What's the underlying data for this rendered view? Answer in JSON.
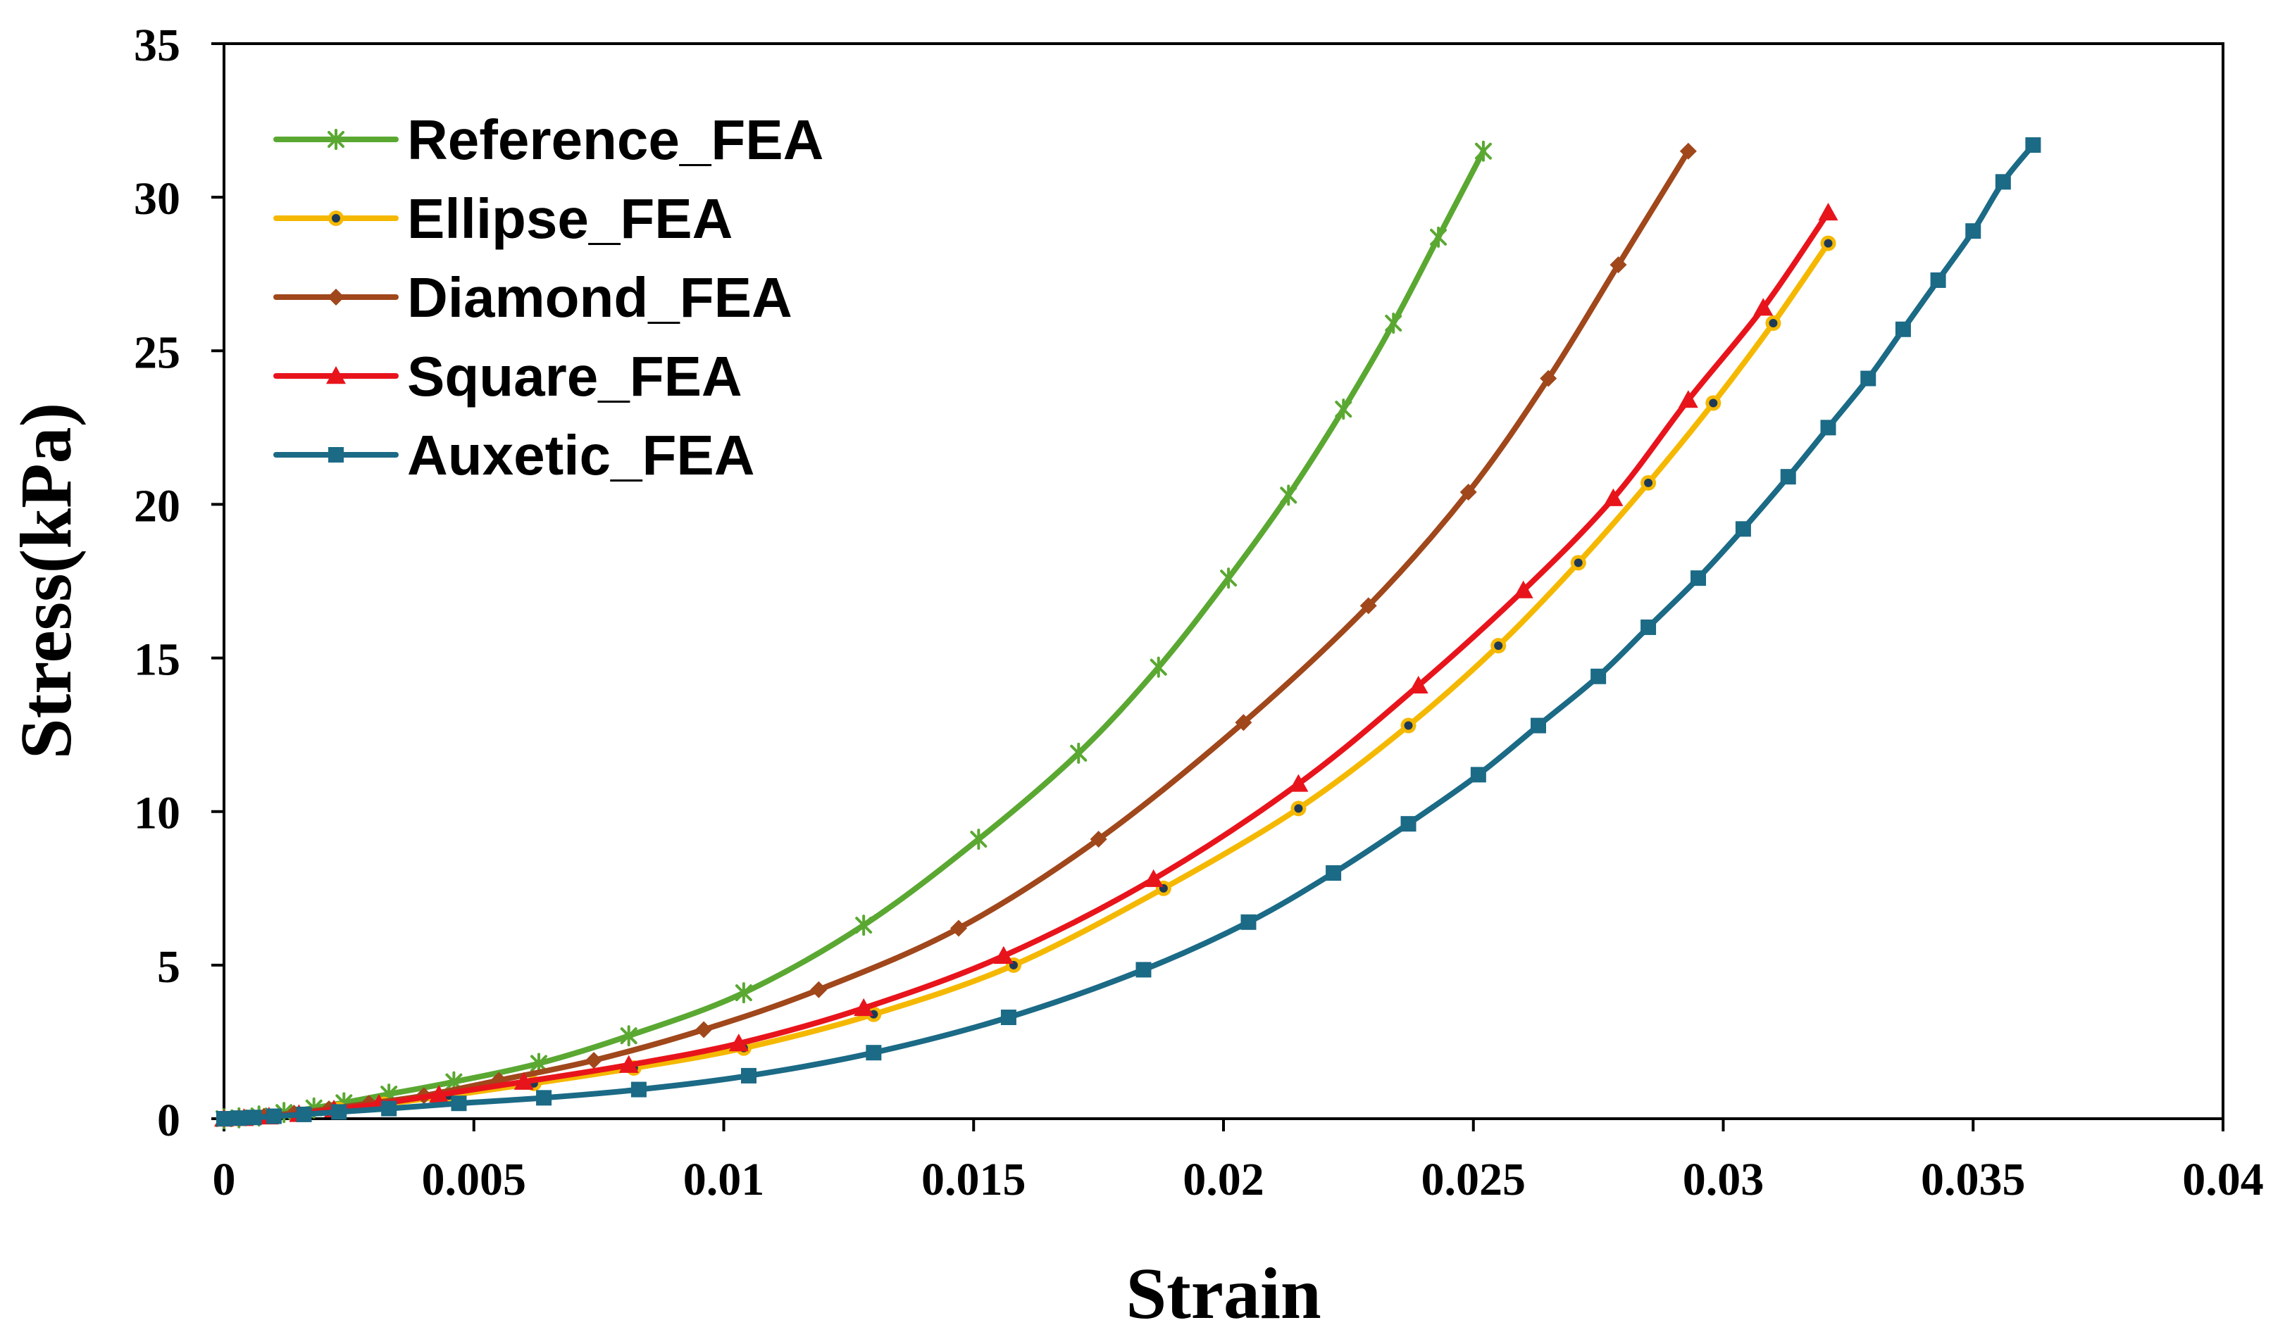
{
  "chart_data": {
    "type": "line",
    "title": "",
    "xlabel": "Strain",
    "ylabel": "Stress(kPa)",
    "xlim": [
      0,
      0.04
    ],
    "ylim": [
      0,
      35
    ],
    "xticks": [
      0,
      0.005,
      0.01,
      0.015,
      0.02,
      0.025,
      0.03,
      0.035,
      0.04
    ],
    "xtick_labels": [
      "0",
      "0.005",
      "0.01",
      "0.015",
      "0.02",
      "0.025",
      "0.03",
      "0.035",
      "0.04"
    ],
    "yticks": [
      0,
      5,
      10,
      15,
      20,
      25,
      30,
      35
    ],
    "ytick_labels": [
      "0",
      "5",
      "10",
      "15",
      "20",
      "25",
      "30",
      "35"
    ],
    "grid": false,
    "legend_position": "top-left",
    "series": [
      {
        "name": "Reference_FEA",
        "color": "#5aa832",
        "marker": "asterisk",
        "x": [
          0,
          0.0003,
          0.0007,
          0.0012,
          0.0018,
          0.0024,
          0.0033,
          0.0046,
          0.0063,
          0.0081,
          0.0104,
          0.0128,
          0.0151,
          0.0171,
          0.0187,
          0.0201,
          0.0213,
          0.0224,
          0.0234,
          0.0243,
          0.0252
        ],
        "y": [
          0,
          0.03,
          0.09,
          0.2,
          0.35,
          0.52,
          0.8,
          1.2,
          1.8,
          2.7,
          4.1,
          6.3,
          9.1,
          11.9,
          14.7,
          17.6,
          20.3,
          23.1,
          25.9,
          28.7,
          31.5
        ]
      },
      {
        "name": "Ellipse_FEA",
        "color": "#f5b800",
        "marker": "circle",
        "x": [
          0,
          0.0004,
          0.0009,
          0.0015,
          0.0023,
          0.0032,
          0.0045,
          0.0062,
          0.0082,
          0.0104,
          0.013,
          0.0158,
          0.0188,
          0.0215,
          0.0237,
          0.0255,
          0.0271,
          0.0285,
          0.0298,
          0.031,
          0.0321
        ],
        "y": [
          0,
          0.02,
          0.07,
          0.15,
          0.3,
          0.47,
          0.75,
          1.15,
          1.65,
          2.3,
          3.4,
          5.0,
          7.5,
          10.1,
          12.8,
          15.4,
          18.1,
          20.7,
          23.3,
          25.9,
          28.5
        ]
      },
      {
        "name": "Diamond_FEA",
        "color": "#a0471b",
        "marker": "diamond",
        "x": [
          0,
          0.0003,
          0.0008,
          0.0014,
          0.0021,
          0.0029,
          0.004,
          0.0055,
          0.0074,
          0.0096,
          0.0119,
          0.0147,
          0.0175,
          0.0204,
          0.0229,
          0.0249,
          0.0265,
          0.0279,
          0.0293
        ],
        "y": [
          0,
          0.03,
          0.08,
          0.18,
          0.32,
          0.5,
          0.75,
          1.25,
          1.9,
          2.9,
          4.2,
          6.2,
          9.1,
          12.9,
          16.7,
          20.4,
          24.1,
          27.8,
          31.5
        ]
      },
      {
        "name": "Square_FEA",
        "color": "#e8141c",
        "marker": "triangle",
        "x": [
          0,
          0.0004,
          0.0009,
          0.0015,
          0.0022,
          0.0031,
          0.0043,
          0.006,
          0.0081,
          0.0103,
          0.0128,
          0.0156,
          0.0186,
          0.0215,
          0.0239,
          0.026,
          0.0278,
          0.0293,
          0.0308,
          0.0321
        ],
        "y": [
          0,
          0.02,
          0.07,
          0.15,
          0.3,
          0.48,
          0.78,
          1.2,
          1.75,
          2.45,
          3.6,
          5.3,
          7.8,
          10.9,
          14.1,
          17.2,
          20.2,
          23.4,
          26.4,
          29.5
        ]
      },
      {
        "name": "Auxetic_FEA",
        "color": "#1b6a86",
        "marker": "square",
        "x": [
          0,
          0.0003,
          0.0006,
          0.001,
          0.0016,
          0.0023,
          0.0033,
          0.0047,
          0.0064,
          0.0083,
          0.0105,
          0.013,
          0.0157,
          0.0184,
          0.0205,
          0.0222,
          0.0237,
          0.0251,
          0.0263,
          0.0275,
          0.0285,
          0.0295,
          0.0304,
          0.0313,
          0.0321,
          0.0329,
          0.0336,
          0.0343,
          0.035,
          0.0356,
          0.0362
        ],
        "y": [
          0,
          0.02,
          0.04,
          0.08,
          0.14,
          0.22,
          0.33,
          0.5,
          0.68,
          0.95,
          1.4,
          2.15,
          3.3,
          4.85,
          6.4,
          8.0,
          9.6,
          11.2,
          12.8,
          14.4,
          16.0,
          17.6,
          19.2,
          20.9,
          22.5,
          24.1,
          25.7,
          27.3,
          28.9,
          30.5,
          31.7
        ]
      }
    ]
  }
}
